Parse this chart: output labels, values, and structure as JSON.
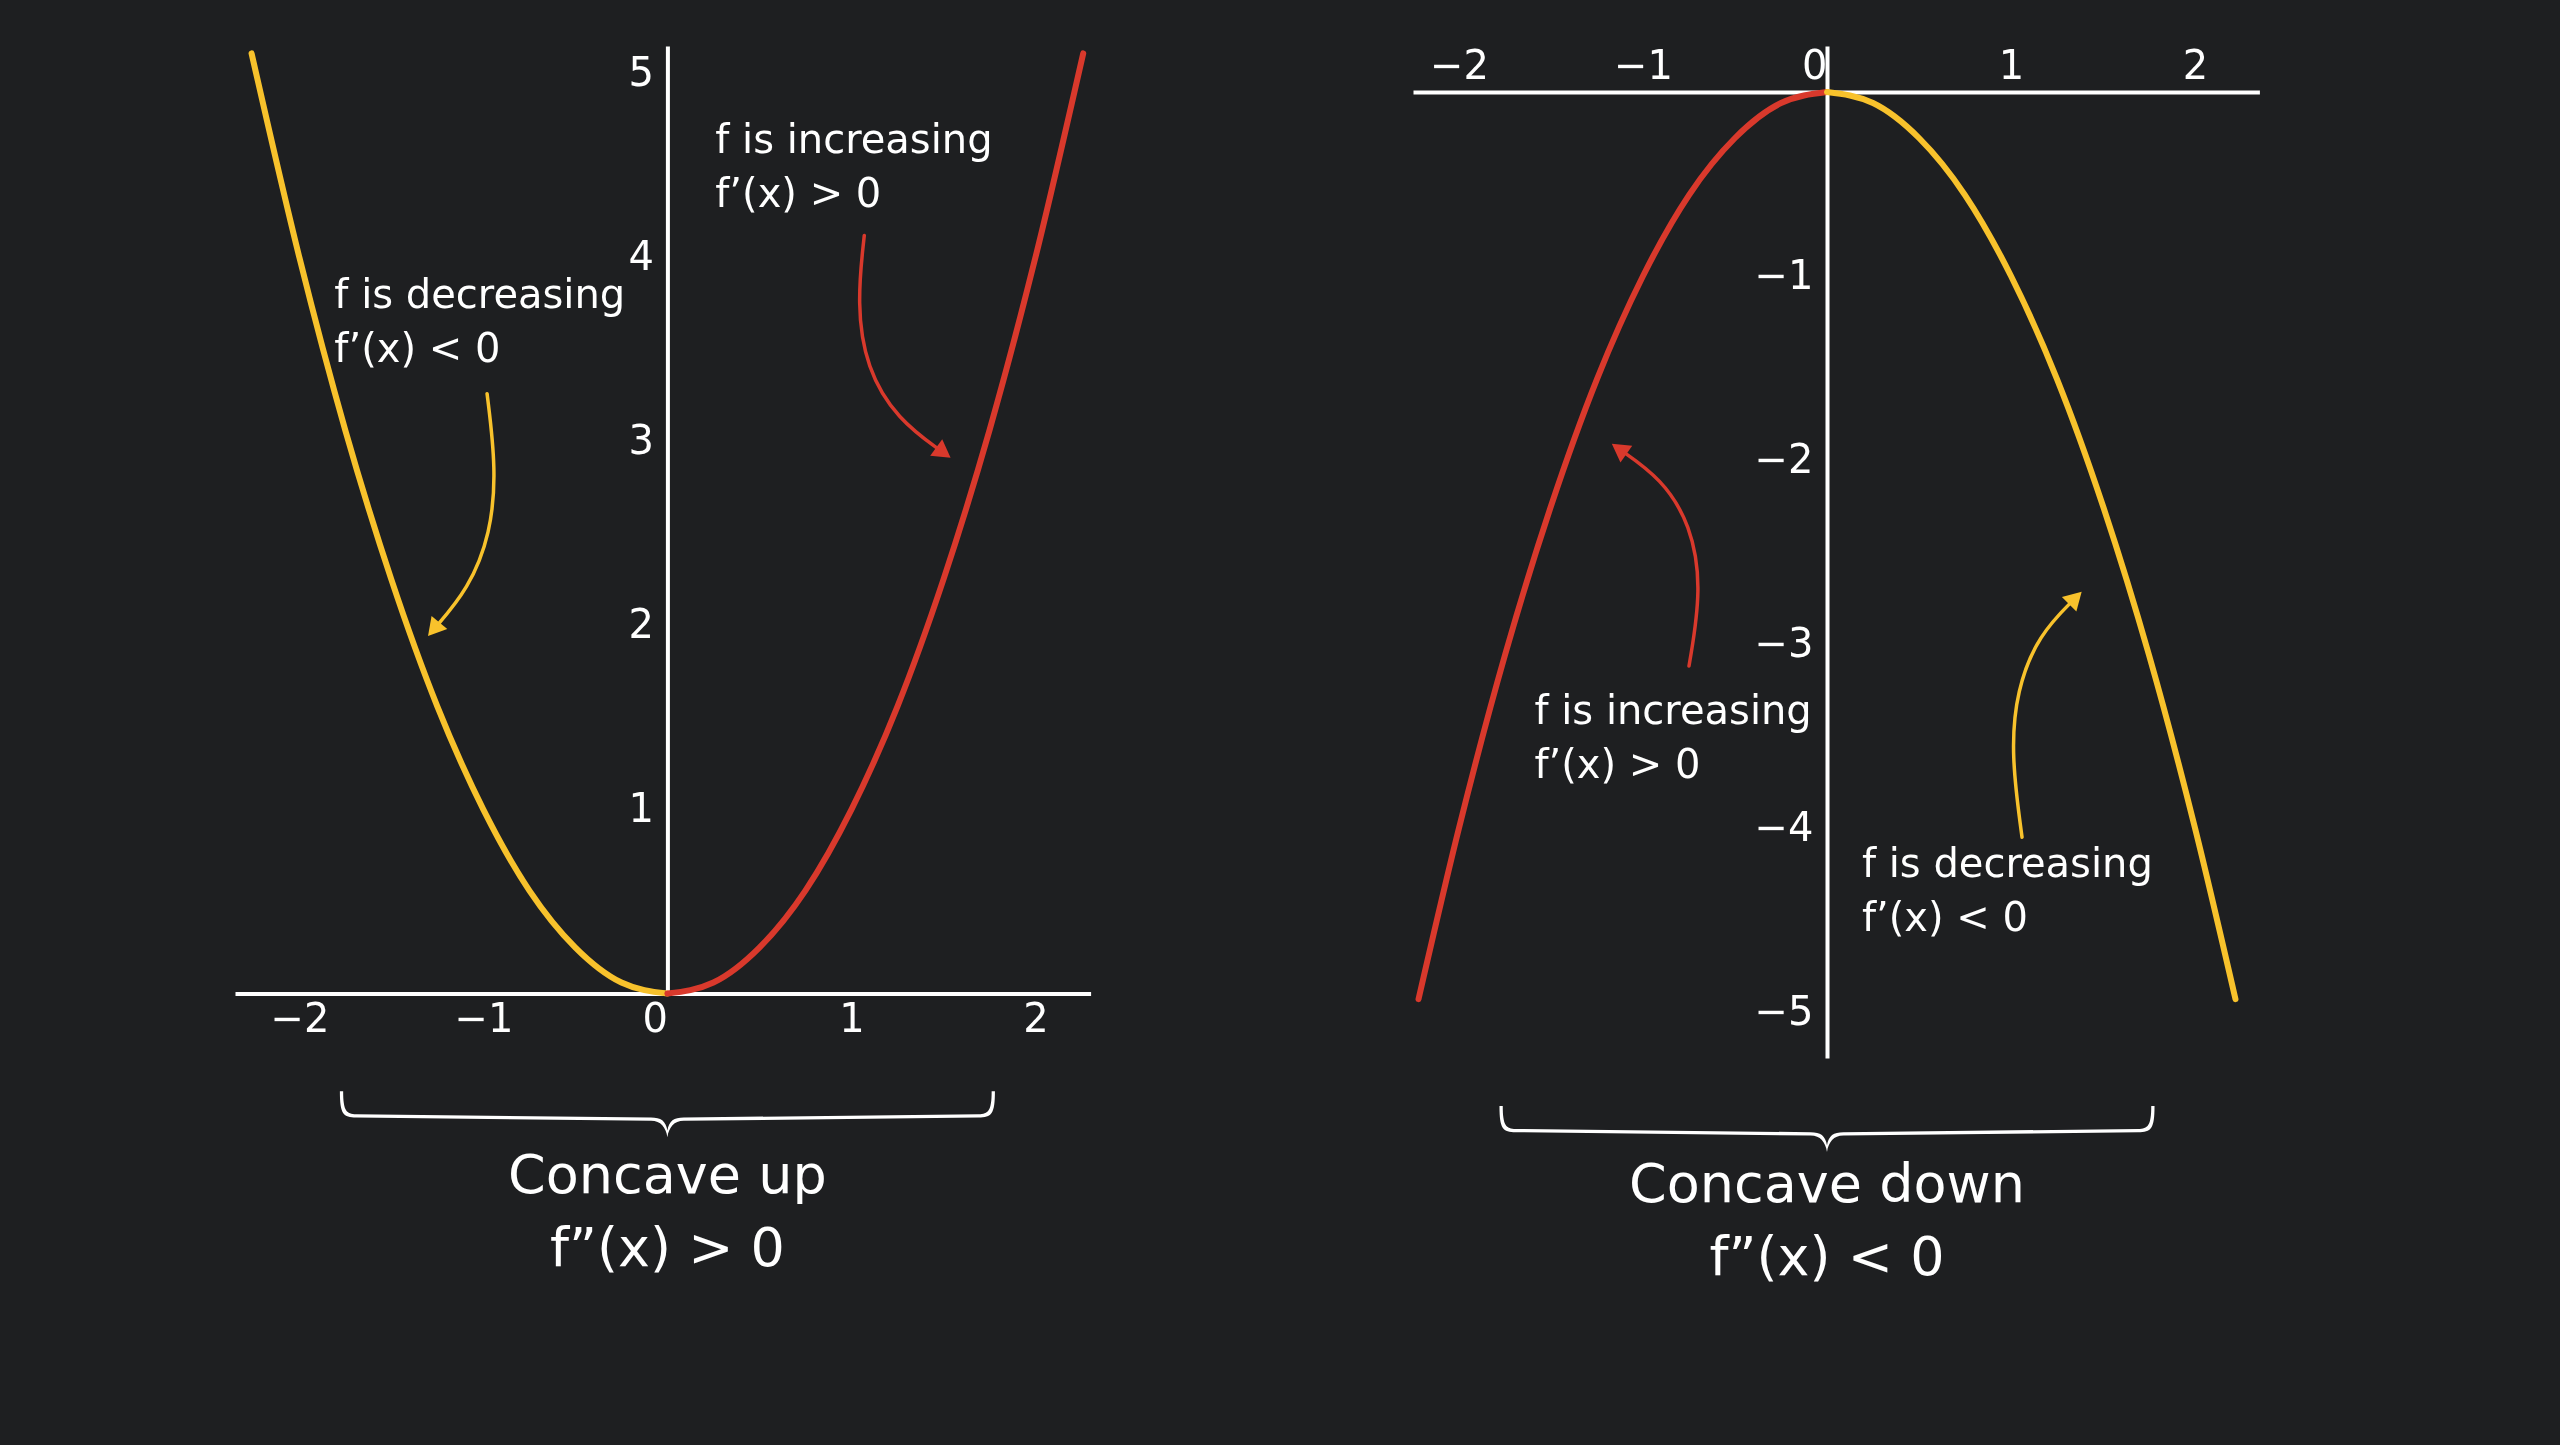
{
  "chart_data": [
    {
      "type": "line",
      "xlim": [
        -2.35,
        2.3
      ],
      "ylim": [
        0,
        5.15
      ],
      "xticks": [
        -2,
        -1,
        0,
        1,
        2
      ],
      "yticks": [
        1,
        2,
        3,
        4,
        5
      ],
      "grid": false,
      "series": [
        {
          "color": "#f8c22c",
          "x": [
            -2.26,
            -2,
            -1.75,
            -1.5,
            -1.25,
            -1,
            -0.75,
            -0.5,
            -0.25,
            0
          ],
          "values": [
            5.11,
            4,
            3.06,
            2.25,
            1.56,
            1,
            0.56,
            0.25,
            0.06,
            0
          ]
        },
        {
          "color": "#d9392c",
          "x": [
            0,
            0.25,
            0.5,
            0.75,
            1,
            1.25,
            1.5,
            1.75,
            2,
            2.26
          ],
          "values": [
            0,
            0.06,
            0.25,
            0.56,
            1,
            1.56,
            2.25,
            3.06,
            4,
            5.11
          ]
        }
      ],
      "annotations": [
        "f is decreasing\nf’(x) < 0",
        "f is increasing\nf’(x) > 0",
        "Concave up\nf”(x) > 0"
      ]
    },
    {
      "type": "line",
      "xlim": [
        -2.25,
        2.35
      ],
      "ylim": [
        -5.25,
        0.25
      ],
      "xticks": [
        -2,
        -1,
        0,
        1,
        2
      ],
      "yticks": [
        -5,
        -4,
        -3,
        -2,
        -1
      ],
      "grid": false,
      "series": [
        {
          "color": "#d9392c",
          "x": [
            -2.22,
            -2,
            -1.75,
            -1.5,
            -1.25,
            -1,
            -0.75,
            -0.5,
            -0.25,
            0
          ],
          "values": [
            -4.93,
            -4,
            -3.06,
            -2.25,
            -1.56,
            -1,
            -0.56,
            -0.25,
            -0.06,
            0
          ]
        },
        {
          "color": "#f8c22c",
          "x": [
            0,
            0.25,
            0.5,
            0.75,
            1,
            1.25,
            1.5,
            1.75,
            2,
            2.22
          ],
          "values": [
            0,
            -0.06,
            -0.25,
            -0.56,
            -1,
            -1.56,
            -2.25,
            -3.06,
            -4,
            -4.93
          ]
        }
      ],
      "annotations": [
        "f is increasing\nf’(x) > 0",
        "f is decreasing\nf’(x) < 0",
        "Concave down\nf”(x) < 0"
      ]
    }
  ]
}
